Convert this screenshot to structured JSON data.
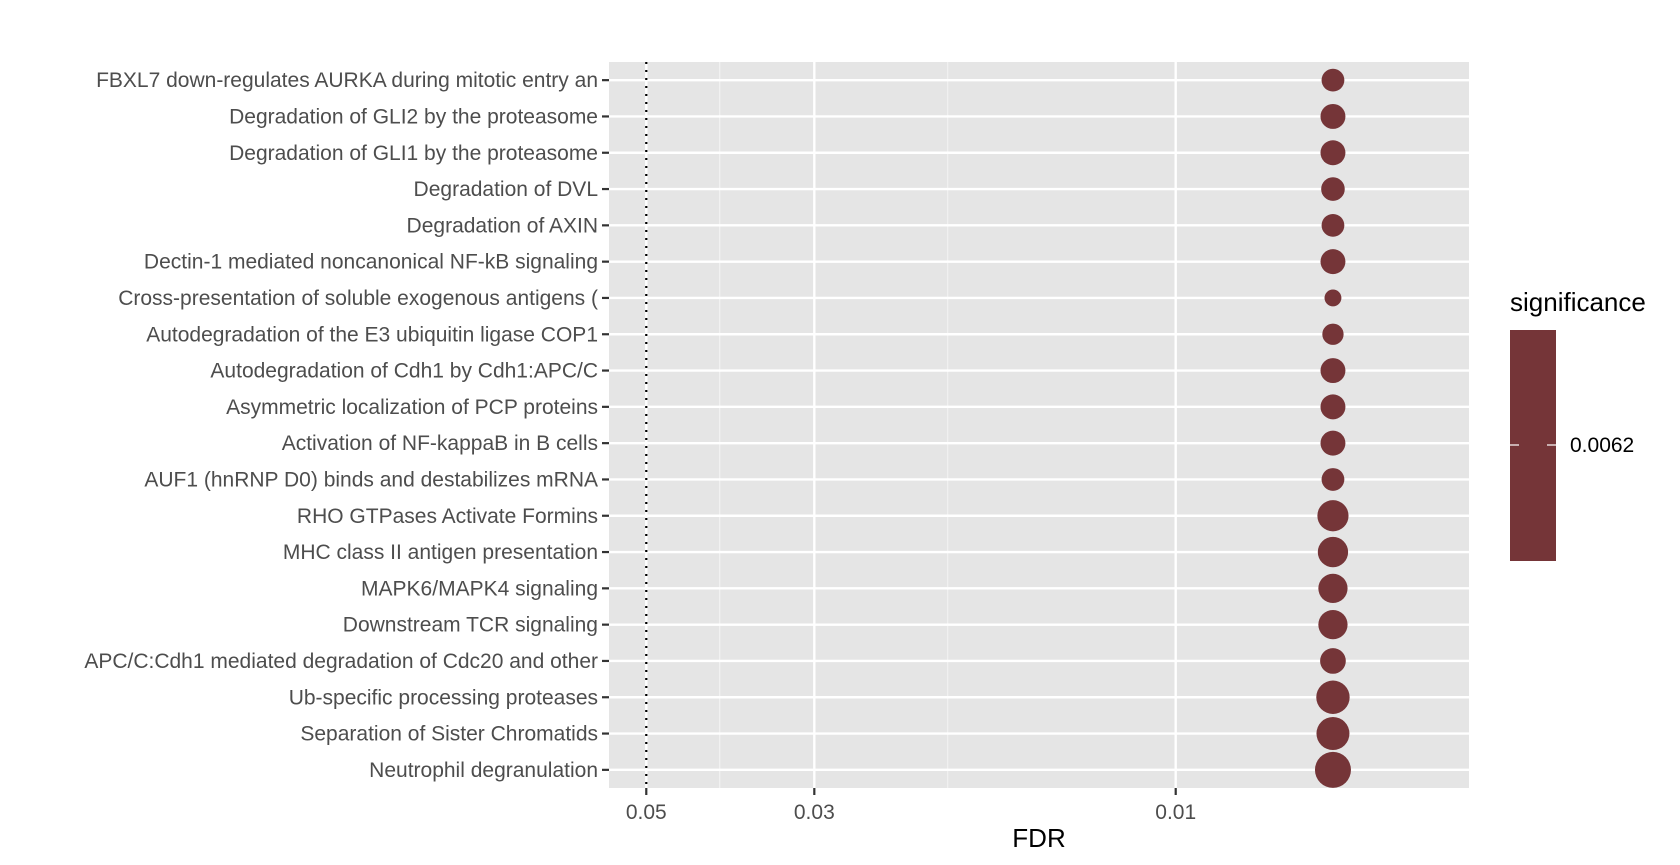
{
  "chart_data": {
    "type": "scatter",
    "title": "",
    "xlabel": "FDR",
    "ylabel": "",
    "x_scale": "reverse-log10",
    "xlim": [
      0.056,
      0.0041
    ],
    "x_ticks": [
      {
        "value": 0.05,
        "label": "0.05"
      },
      {
        "value": 0.03,
        "label": "0.03"
      },
      {
        "value": 0.01,
        "label": "0.01"
      }
    ],
    "minor_gridlines": [
      0.04,
      0.02
    ],
    "reference_line": {
      "value": 0.05,
      "style": "dotted"
    },
    "grid": true,
    "point_color": "#753538",
    "panel_color": "#e5e5e5",
    "categories": [
      "FBXL7 down-regulates AURKA during mitotic entry an",
      "Degradation of GLI2 by the proteasome",
      "Degradation of GLI1 by the proteasome",
      "Degradation of DVL",
      "Degradation of AXIN",
      "Dectin-1 mediated noncanonical NF-kB signaling",
      "Cross-presentation of soluble exogenous antigens (",
      "Autodegradation of the E3 ubiquitin ligase COP1",
      "Autodegradation of Cdh1 by Cdh1:APC/C",
      "Asymmetric localization of PCP proteins",
      "Activation of NF-kappaB in B cells",
      "AUF1 (hnRNP D0) binds and destabilizes mRNA",
      "RHO GTPases Activate Formins",
      "MHC class II antigen presentation",
      "MAPK6/MAPK4 signaling",
      "Downstream TCR signaling",
      "APC/C:Cdh1 mediated degradation of Cdc20 and other",
      "Ub-specific processing proteases",
      "Separation of Sister Chromatids",
      "Neutrophil degranulation"
    ],
    "x": [
      0.0062,
      0.0062,
      0.0062,
      0.0062,
      0.0062,
      0.0062,
      0.0062,
      0.0062,
      0.0062,
      0.0062,
      0.0062,
      0.0062,
      0.0062,
      0.0062,
      0.0062,
      0.0062,
      0.0062,
      0.0062,
      0.0062,
      0.0062
    ],
    "size_relative": [
      0.4,
      0.48,
      0.48,
      0.43,
      0.4,
      0.48,
      0.22,
      0.35,
      0.48,
      0.48,
      0.48,
      0.4,
      0.75,
      0.71,
      0.66,
      0.66,
      0.51,
      0.86,
      0.84,
      1.0
    ],
    "legend": {
      "title": "significance",
      "label": "0.0062",
      "position": "right"
    }
  }
}
